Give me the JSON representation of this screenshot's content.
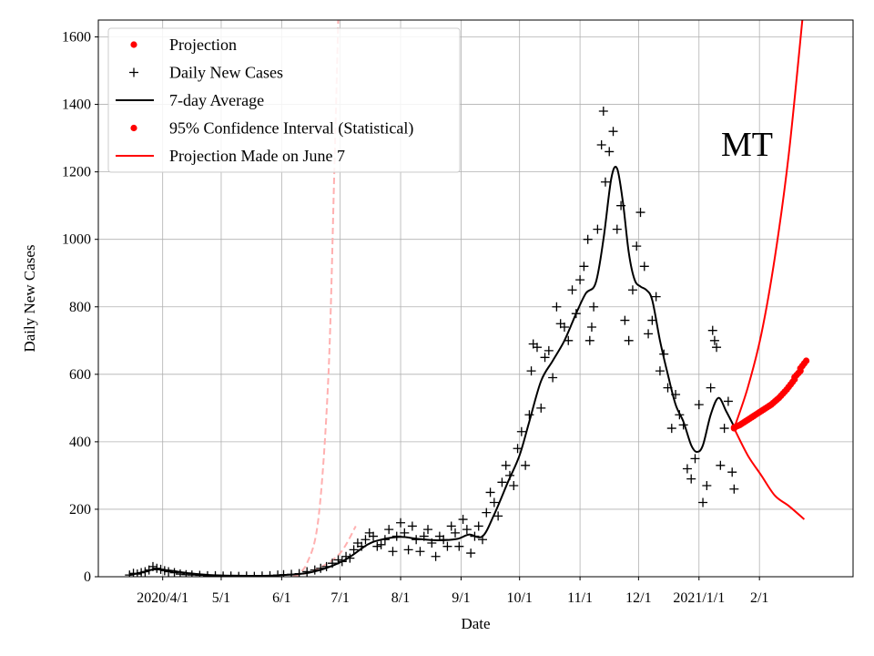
{
  "chart_data": {
    "type": "line",
    "annotation": "MT",
    "xlabel": "Date",
    "ylabel": "Daily New Cases",
    "x_range": [
      "2020-02-28",
      "2021-03-21"
    ],
    "ylim": [
      0,
      1650
    ],
    "grid": true,
    "legend_placement": "top-left",
    "x_ticks": [
      {
        "date": "2020-04-01",
        "label": "2020/4/1"
      },
      {
        "date": "2020-05-01",
        "label": "5/1"
      },
      {
        "date": "2020-06-01",
        "label": "6/1"
      },
      {
        "date": "2020-07-01",
        "label": "7/1"
      },
      {
        "date": "2020-08-01",
        "label": "8/1"
      },
      {
        "date": "2020-09-01",
        "label": "9/1"
      },
      {
        "date": "2020-10-01",
        "label": "10/1"
      },
      {
        "date": "2020-11-01",
        "label": "11/1"
      },
      {
        "date": "2020-12-01",
        "label": "12/1"
      },
      {
        "date": "2021-01-01",
        "label": "2021/1/1"
      },
      {
        "date": "2021-02-01",
        "label": "2/1"
      }
    ],
    "y_ticks": [
      0,
      200,
      400,
      600,
      800,
      1000,
      1200,
      1400,
      1600
    ],
    "legend": [
      {
        "label": "Projection",
        "marker": "dot",
        "color": "#ff0000"
      },
      {
        "label": "Daily New Cases",
        "marker": "plus",
        "color": "#000000"
      },
      {
        "label": "7-day Average",
        "marker": "line",
        "color": "#000000"
      },
      {
        "label": "95% Confidence Interval (Statistical)",
        "marker": "dot",
        "color": "#ff0000"
      },
      {
        "label": "Projection Made on June 7",
        "marker": "line",
        "color": "#ff0000"
      }
    ],
    "series": [
      {
        "name": "Daily New Cases",
        "style": "plus",
        "color": "#000000",
        "points": [
          [
            "2020-03-15",
            5
          ],
          [
            "2020-03-17",
            10
          ],
          [
            "2020-03-19",
            8
          ],
          [
            "2020-03-21",
            12
          ],
          [
            "2020-03-23",
            15
          ],
          [
            "2020-03-25",
            20
          ],
          [
            "2020-03-27",
            30
          ],
          [
            "2020-03-29",
            25
          ],
          [
            "2020-03-31",
            22
          ],
          [
            "2020-04-02",
            18
          ],
          [
            "2020-04-04",
            15
          ],
          [
            "2020-04-07",
            12
          ],
          [
            "2020-04-10",
            8
          ],
          [
            "2020-04-13",
            6
          ],
          [
            "2020-04-16",
            5
          ],
          [
            "2020-04-20",
            4
          ],
          [
            "2020-04-24",
            3
          ],
          [
            "2020-04-28",
            3
          ],
          [
            "2020-05-02",
            2
          ],
          [
            "2020-05-06",
            2
          ],
          [
            "2020-05-10",
            1
          ],
          [
            "2020-05-14",
            2
          ],
          [
            "2020-05-18",
            1
          ],
          [
            "2020-05-22",
            2
          ],
          [
            "2020-05-26",
            3
          ],
          [
            "2020-05-30",
            5
          ],
          [
            "2020-06-02",
            6
          ],
          [
            "2020-06-06",
            7
          ],
          [
            "2020-06-10",
            9
          ],
          [
            "2020-06-14",
            15
          ],
          [
            "2020-06-18",
            20
          ],
          [
            "2020-06-21",
            25
          ],
          [
            "2020-06-24",
            30
          ],
          [
            "2020-06-27",
            40
          ],
          [
            "2020-06-30",
            50
          ],
          [
            "2020-07-02",
            45
          ],
          [
            "2020-07-04",
            60
          ],
          [
            "2020-07-06",
            55
          ],
          [
            "2020-07-08",
            80
          ],
          [
            "2020-07-10",
            100
          ],
          [
            "2020-07-12",
            90
          ],
          [
            "2020-07-14",
            110
          ],
          [
            "2020-07-16",
            130
          ],
          [
            "2020-07-18",
            120
          ],
          [
            "2020-07-20",
            90
          ],
          [
            "2020-07-22",
            95
          ],
          [
            "2020-07-24",
            110
          ],
          [
            "2020-07-26",
            140
          ],
          [
            "2020-07-28",
            75
          ],
          [
            "2020-07-30",
            120
          ],
          [
            "2020-08-01",
            160
          ],
          [
            "2020-08-03",
            130
          ],
          [
            "2020-08-05",
            80
          ],
          [
            "2020-08-07",
            150
          ],
          [
            "2020-08-09",
            110
          ],
          [
            "2020-08-11",
            75
          ],
          [
            "2020-08-13",
            120
          ],
          [
            "2020-08-15",
            140
          ],
          [
            "2020-08-17",
            100
          ],
          [
            "2020-08-19",
            60
          ],
          [
            "2020-08-21",
            120
          ],
          [
            "2020-08-23",
            110
          ],
          [
            "2020-08-25",
            90
          ],
          [
            "2020-08-27",
            150
          ],
          [
            "2020-08-29",
            130
          ],
          [
            "2020-08-31",
            90
          ],
          [
            "2020-09-02",
            170
          ],
          [
            "2020-09-04",
            140
          ],
          [
            "2020-09-06",
            70
          ],
          [
            "2020-09-08",
            120
          ],
          [
            "2020-09-10",
            150
          ],
          [
            "2020-09-12",
            110
          ],
          [
            "2020-09-14",
            190
          ],
          [
            "2020-09-16",
            250
          ],
          [
            "2020-09-18",
            220
          ],
          [
            "2020-09-20",
            180
          ],
          [
            "2020-09-22",
            280
          ],
          [
            "2020-09-24",
            330
          ],
          [
            "2020-09-26",
            300
          ],
          [
            "2020-09-28",
            270
          ],
          [
            "2020-09-30",
            380
          ],
          [
            "2020-10-02",
            430
          ],
          [
            "2020-10-04",
            330
          ],
          [
            "2020-10-06",
            480
          ],
          [
            "2020-10-07",
            610
          ],
          [
            "2020-10-08",
            690
          ],
          [
            "2020-10-10",
            680
          ],
          [
            "2020-10-12",
            500
          ],
          [
            "2020-10-14",
            650
          ],
          [
            "2020-10-16",
            670
          ],
          [
            "2020-10-18",
            590
          ],
          [
            "2020-10-20",
            800
          ],
          [
            "2020-10-22",
            750
          ],
          [
            "2020-10-24",
            740
          ],
          [
            "2020-10-26",
            700
          ],
          [
            "2020-10-28",
            850
          ],
          [
            "2020-10-30",
            780
          ],
          [
            "2020-11-01",
            880
          ],
          [
            "2020-11-03",
            920
          ],
          [
            "2020-11-05",
            1000
          ],
          [
            "2020-11-06",
            700
          ],
          [
            "2020-11-07",
            740
          ],
          [
            "2020-11-08",
            800
          ],
          [
            "2020-11-10",
            1030
          ],
          [
            "2020-11-12",
            1280
          ],
          [
            "2020-11-13",
            1380
          ],
          [
            "2020-11-14",
            1170
          ],
          [
            "2020-11-16",
            1260
          ],
          [
            "2020-11-18",
            1320
          ],
          [
            "2020-11-20",
            1030
          ],
          [
            "2020-11-22",
            1100
          ],
          [
            "2020-11-24",
            760
          ],
          [
            "2020-11-26",
            700
          ],
          [
            "2020-11-28",
            850
          ],
          [
            "2020-11-30",
            980
          ],
          [
            "2020-12-02",
            1080
          ],
          [
            "2020-12-04",
            920
          ],
          [
            "2020-12-06",
            720
          ],
          [
            "2020-12-08",
            760
          ],
          [
            "2020-12-10",
            830
          ],
          [
            "2020-12-12",
            610
          ],
          [
            "2020-12-14",
            660
          ],
          [
            "2020-12-16",
            560
          ],
          [
            "2020-12-18",
            440
          ],
          [
            "2020-12-20",
            540
          ],
          [
            "2020-12-22",
            480
          ],
          [
            "2020-12-24",
            450
          ],
          [
            "2020-12-26",
            320
          ],
          [
            "2020-12-28",
            290
          ],
          [
            "2020-12-30",
            350
          ],
          [
            "2021-01-01",
            510
          ],
          [
            "2021-01-03",
            220
          ],
          [
            "2021-01-05",
            270
          ],
          [
            "2021-01-07",
            560
          ],
          [
            "2021-01-08",
            730
          ],
          [
            "2021-01-09",
            700
          ],
          [
            "2021-01-10",
            680
          ],
          [
            "2021-01-12",
            330
          ],
          [
            "2021-01-14",
            440
          ],
          [
            "2021-01-16",
            520
          ],
          [
            "2021-01-18",
            310
          ],
          [
            "2021-01-19",
            260
          ]
        ]
      },
      {
        "name": "7-day Average",
        "style": "line",
        "color": "#000000",
        "points": [
          [
            "2020-03-15",
            5
          ],
          [
            "2020-03-22",
            14
          ],
          [
            "2020-03-28",
            22
          ],
          [
            "2020-04-05",
            18
          ],
          [
            "2020-04-15",
            10
          ],
          [
            "2020-04-25",
            5
          ],
          [
            "2020-05-10",
            3
          ],
          [
            "2020-05-25",
            3
          ],
          [
            "2020-06-05",
            6
          ],
          [
            "2020-06-15",
            12
          ],
          [
            "2020-06-25",
            28
          ],
          [
            "2020-07-05",
            55
          ],
          [
            "2020-07-15",
            95
          ],
          [
            "2020-07-22",
            110
          ],
          [
            "2020-08-01",
            118
          ],
          [
            "2020-08-10",
            112
          ],
          [
            "2020-08-20",
            108
          ],
          [
            "2020-08-30",
            112
          ],
          [
            "2020-09-05",
            125
          ],
          [
            "2020-09-12",
            120
          ],
          [
            "2020-09-18",
            185
          ],
          [
            "2020-09-25",
            280
          ],
          [
            "2020-10-01",
            360
          ],
          [
            "2020-10-06",
            460
          ],
          [
            "2020-10-12",
            580
          ],
          [
            "2020-10-18",
            640
          ],
          [
            "2020-10-24",
            700
          ],
          [
            "2020-10-30",
            780
          ],
          [
            "2020-11-04",
            840
          ],
          [
            "2020-11-09",
            870
          ],
          [
            "2020-11-13",
            1000
          ],
          [
            "2020-11-17",
            1180
          ],
          [
            "2020-11-20",
            1210
          ],
          [
            "2020-11-23",
            1110
          ],
          [
            "2020-11-26",
            960
          ],
          [
            "2020-11-29",
            880
          ],
          [
            "2020-12-02",
            860
          ],
          [
            "2020-12-05",
            850
          ],
          [
            "2020-12-08",
            820
          ],
          [
            "2020-12-12",
            700
          ],
          [
            "2020-12-16",
            600
          ],
          [
            "2020-12-20",
            510
          ],
          [
            "2020-12-24",
            460
          ],
          [
            "2020-12-28",
            390
          ],
          [
            "2020-12-31",
            370
          ],
          [
            "2021-01-03",
            390
          ],
          [
            "2021-01-07",
            480
          ],
          [
            "2021-01-11",
            530
          ],
          [
            "2021-01-15",
            490
          ],
          [
            "2021-01-19",
            445
          ]
        ]
      },
      {
        "name": "Projection",
        "style": "dot",
        "color": "#ff0000",
        "points": [
          [
            "2021-01-19",
            440
          ],
          [
            "2021-01-22",
            450
          ],
          [
            "2021-01-26",
            465
          ],
          [
            "2021-01-30",
            480
          ],
          [
            "2021-02-03",
            495
          ],
          [
            "2021-02-07",
            510
          ],
          [
            "2021-02-11",
            530
          ],
          [
            "2021-02-15",
            555
          ],
          [
            "2021-02-19",
            585
          ],
          [
            "2021-02-22",
            610
          ],
          [
            "2021-02-25",
            640
          ]
        ]
      },
      {
        "name": "95% Confidence Interval (Statistical)",
        "style": "band",
        "color": "#ff0000",
        "upper": [
          [
            "2021-01-19",
            440
          ],
          [
            "2021-01-26",
            560
          ],
          [
            "2021-02-02",
            720
          ],
          [
            "2021-02-09",
            950
          ],
          [
            "2021-02-16",
            1250
          ],
          [
            "2021-02-23",
            1650
          ]
        ],
        "lower": [
          [
            "2021-01-19",
            440
          ],
          [
            "2021-01-26",
            360
          ],
          [
            "2021-02-02",
            300
          ],
          [
            "2021-02-09",
            240
          ],
          [
            "2021-02-16",
            210
          ],
          [
            "2021-02-24",
            170
          ]
        ]
      },
      {
        "name": "Projection Made on June 7",
        "style": "dashed",
        "color": "#ffb0b0",
        "upper": [
          [
            "2020-06-07",
            0
          ],
          [
            "2020-06-14",
            40
          ],
          [
            "2020-06-20",
            180
          ],
          [
            "2020-06-25",
            600
          ],
          [
            "2020-06-28",
            1200
          ],
          [
            "2020-06-30",
            1650
          ]
        ],
        "lower": [
          [
            "2020-06-07",
            0
          ],
          [
            "2020-06-20",
            25
          ],
          [
            "2020-07-01",
            70
          ],
          [
            "2020-07-09",
            150
          ]
        ]
      }
    ]
  }
}
